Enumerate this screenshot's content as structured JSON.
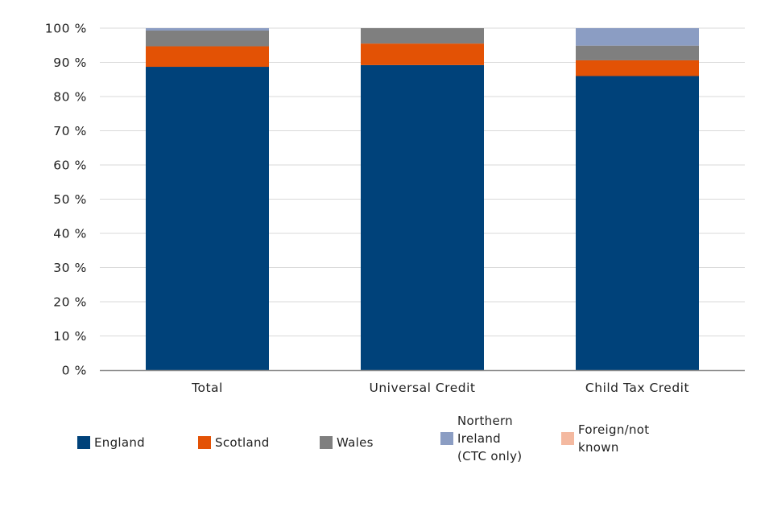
{
  "chart_data": {
    "type": "bar",
    "stacked": true,
    "title": "",
    "xlabel": "",
    "ylabel": "",
    "ylim": [
      0,
      100
    ],
    "y_tick_suffix": " %",
    "y_ticks": [
      0,
      10,
      20,
      30,
      40,
      50,
      60,
      70,
      80,
      90,
      100
    ],
    "grid": true,
    "legend_position": "bottom",
    "categories": [
      "Total",
      "Universal Credit",
      "Child Tax Credit"
    ],
    "series": [
      {
        "name": "England",
        "color": "#00427a",
        "values": [
          88.7,
          89.2,
          86.0
        ]
      },
      {
        "name": "Scotland",
        "color": "#e35205",
        "values": [
          6.0,
          6.3,
          4.6
        ]
      },
      {
        "name": "Wales",
        "color": "#7f7f7f",
        "values": [
          4.6,
          4.5,
          4.3
        ]
      },
      {
        "name": "Northern Ireland (CTC only)",
        "color": "#8b9dc3",
        "values": [
          0.7,
          0.0,
          5.1
        ]
      },
      {
        "name": "Foreign/not known",
        "color": "#f4b9a0",
        "values": [
          0.0,
          0.0,
          0.0
        ]
      }
    ]
  },
  "legend": [
    {
      "label": "England",
      "color": "#00427a"
    },
    {
      "label": "Scotland",
      "color": "#e35205"
    },
    {
      "label": "Wales",
      "color": "#7f7f7f"
    },
    {
      "label": "Northern\nIreland\n(CTC only)",
      "color": "#8b9dc3"
    },
    {
      "label": "Foreign/not\nknown",
      "color": "#f4b9a0"
    }
  ]
}
